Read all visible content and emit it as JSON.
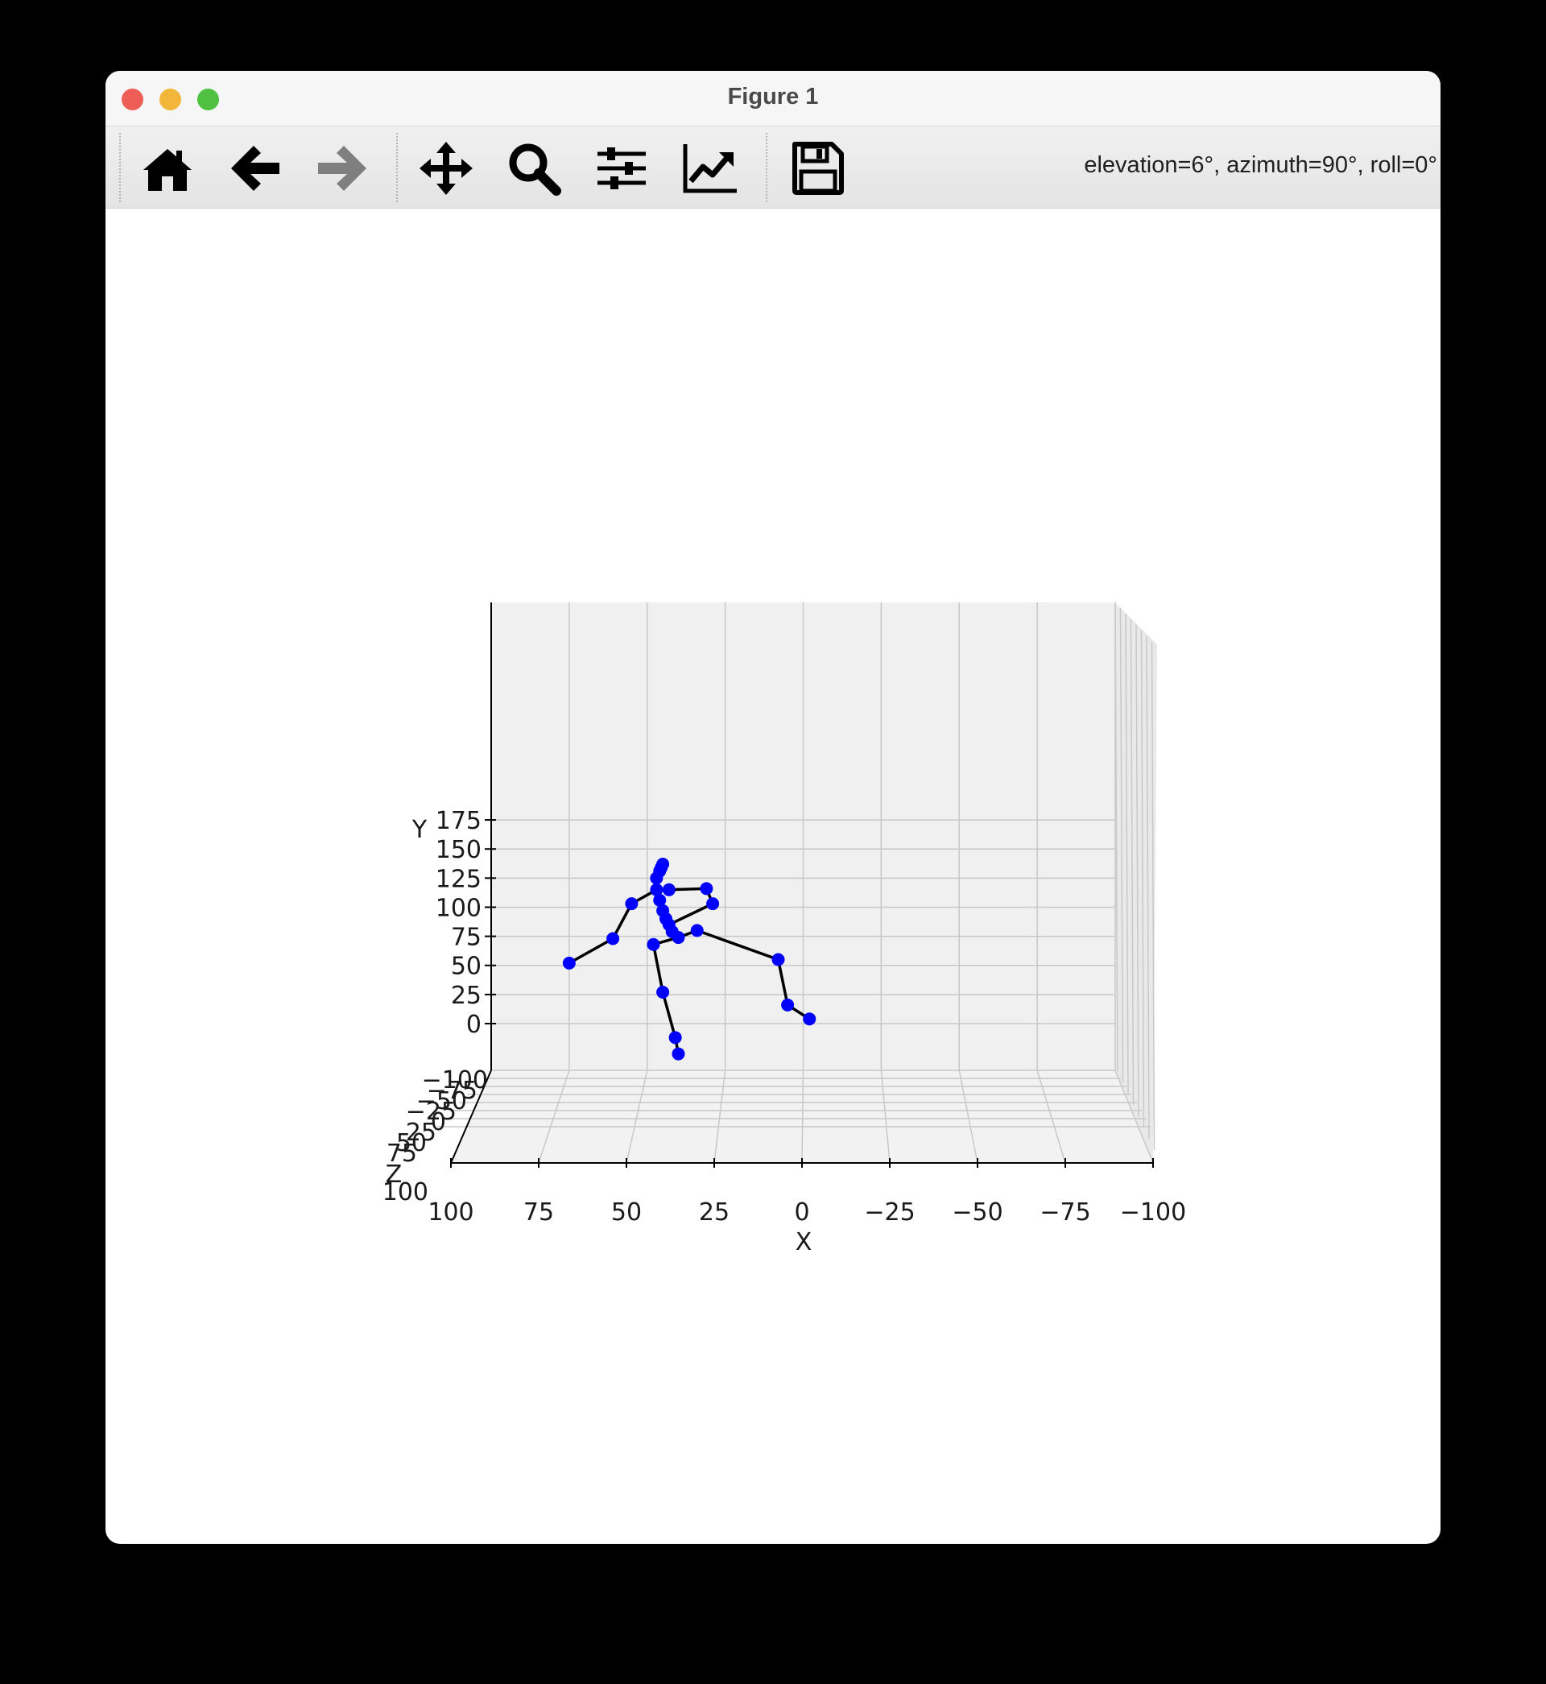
{
  "window": {
    "title": "Figure 1"
  },
  "toolbar": {
    "buttons": [
      {
        "name": "home-button",
        "icon": "home-icon"
      },
      {
        "name": "back-button",
        "icon": "arrow-left-icon"
      },
      {
        "name": "forward-button",
        "icon": "arrow-right-icon"
      },
      {
        "name": "pan-button",
        "icon": "move-icon"
      },
      {
        "name": "zoom-button",
        "icon": "magnifier-icon"
      },
      {
        "name": "subplots-button",
        "icon": "sliders-icon"
      },
      {
        "name": "edit-axes-button",
        "icon": "line-chart-icon"
      },
      {
        "name": "save-button",
        "icon": "floppy-disk-icon"
      }
    ],
    "coordinates": "elevation=6°, azimuth=90°, roll=0°"
  },
  "chart_data": {
    "type": "scatter",
    "projection": "3d",
    "view": {
      "elevation": 6,
      "azimuth": 90,
      "roll": 0
    },
    "xlabel": "X",
    "ylabel": "Y",
    "zlabel": "Z",
    "xlim": [
      100,
      -100
    ],
    "ylim": [
      -15,
      178
    ],
    "zlim": [
      -100,
      100
    ],
    "x_ticks": [
      {
        "value": 100,
        "label": "100"
      },
      {
        "value": 75,
        "label": "75"
      },
      {
        "value": 50,
        "label": "50"
      },
      {
        "value": 25,
        "label": "25"
      },
      {
        "value": 0,
        "label": "0"
      },
      {
        "value": -25,
        "label": "−25"
      },
      {
        "value": -50,
        "label": "−50"
      },
      {
        "value": -75,
        "label": "−75"
      },
      {
        "value": -100,
        "label": "−100"
      }
    ],
    "y_ticks": [
      {
        "value": 175,
        "label": "175"
      },
      {
        "value": 150,
        "label": "150"
      },
      {
        "value": 125,
        "label": "125"
      },
      {
        "value": 100,
        "label": "100"
      },
      {
        "value": 75,
        "label": "75"
      },
      {
        "value": 50,
        "label": "50"
      },
      {
        "value": 25,
        "label": "25"
      },
      {
        "value": 0,
        "label": "0"
      }
    ],
    "z_ticks": [
      {
        "value": -100,
        "label": "−100"
      },
      {
        "value": -75,
        "label": "−75"
      },
      {
        "value": -50,
        "label": "−50"
      },
      {
        "value": -25,
        "label": "−25"
      },
      {
        "value": 0,
        "label": "0"
      },
      {
        "value": 25,
        "label": "25"
      },
      {
        "value": 50,
        "label": "50"
      },
      {
        "value": 75,
        "label": "75"
      },
      {
        "value": 100,
        "label": "100"
      }
    ],
    "grid": true,
    "point_color": "#0000ff",
    "line_color": "#000000",
    "pane_color": "#f0f0f0",
    "points": [
      {
        "x": 45,
        "y": 137
      },
      {
        "x": 45.5,
        "y": 134
      },
      {
        "x": 46,
        "y": 131
      },
      {
        "x": 47,
        "y": 125
      },
      {
        "x": 47,
        "y": 115
      },
      {
        "x": 43,
        "y": 115
      },
      {
        "x": 31,
        "y": 116
      },
      {
        "x": 29,
        "y": 103
      },
      {
        "x": 55,
        "y": 103
      },
      {
        "x": 61,
        "y": 73
      },
      {
        "x": 75,
        "y": 52
      },
      {
        "x": 46,
        "y": 106
      },
      {
        "x": 45,
        "y": 97
      },
      {
        "x": 44,
        "y": 90
      },
      {
        "x": 43,
        "y": 85
      },
      {
        "x": 42,
        "y": 79
      },
      {
        "x": 40,
        "y": 74
      },
      {
        "x": 48,
        "y": 68
      },
      {
        "x": 34,
        "y": 80
      },
      {
        "x": 8,
        "y": 55
      },
      {
        "x": 5,
        "y": 16
      },
      {
        "x": -2,
        "y": 4
      },
      {
        "x": 45,
        "y": 27
      },
      {
        "x": 41,
        "y": -12
      },
      {
        "x": 40,
        "y": -26
      }
    ],
    "bones": [
      [
        0,
        1
      ],
      [
        1,
        2
      ],
      [
        2,
        3
      ],
      [
        3,
        4
      ],
      [
        4,
        5
      ],
      [
        5,
        6
      ],
      [
        6,
        7
      ],
      [
        7,
        14
      ],
      [
        4,
        8
      ],
      [
        8,
        9
      ],
      [
        9,
        10
      ],
      [
        3,
        11
      ],
      [
        11,
        12
      ],
      [
        12,
        13
      ],
      [
        13,
        14
      ],
      [
        14,
        15
      ],
      [
        15,
        16
      ],
      [
        16,
        17
      ],
      [
        16,
        18
      ],
      [
        18,
        19
      ],
      [
        19,
        20
      ],
      [
        20,
        21
      ],
      [
        17,
        22
      ],
      [
        22,
        23
      ],
      [
        23,
        24
      ]
    ]
  }
}
